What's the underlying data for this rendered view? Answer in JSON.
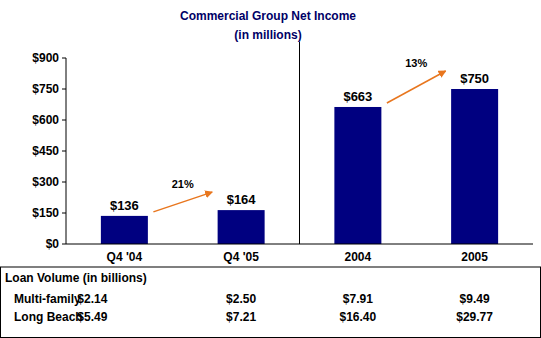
{
  "chart_data": {
    "type": "bar",
    "title": "Commercial Group Net Income",
    "subtitle": "(in millions)",
    "categories": [
      "Q4 '04",
      "Q4 '05",
      "2004",
      "2005"
    ],
    "values": [
      136,
      164,
      663,
      750
    ],
    "value_labels": [
      "$136",
      "$164",
      "$663",
      "$750"
    ],
    "color": "#000080",
    "ylim": [
      0,
      900
    ],
    "yticks": [
      {
        "value": 0,
        "label": "$0"
      },
      {
        "value": 150,
        "label": "$150"
      },
      {
        "value": 300,
        "label": "$300"
      },
      {
        "value": 450,
        "label": "$450"
      },
      {
        "value": 600,
        "label": "$600"
      },
      {
        "value": 750,
        "label": "$750"
      },
      {
        "value": 900,
        "label": "$900"
      }
    ],
    "grid": false,
    "data_labels": true,
    "annotations": [
      {
        "text": "21%"
      },
      {
        "text": "13%"
      }
    ]
  },
  "table": {
    "title": "Loan Volume (in billions)",
    "rows": [
      {
        "label": "Multi-family",
        "values": [
          "$2.14",
          "$2.50",
          "$7.91",
          "$9.49"
        ]
      },
      {
        "label": "Long Beach",
        "values": [
          "$5.49",
          "$7.21",
          "$16.40",
          "$29.77"
        ]
      }
    ]
  }
}
